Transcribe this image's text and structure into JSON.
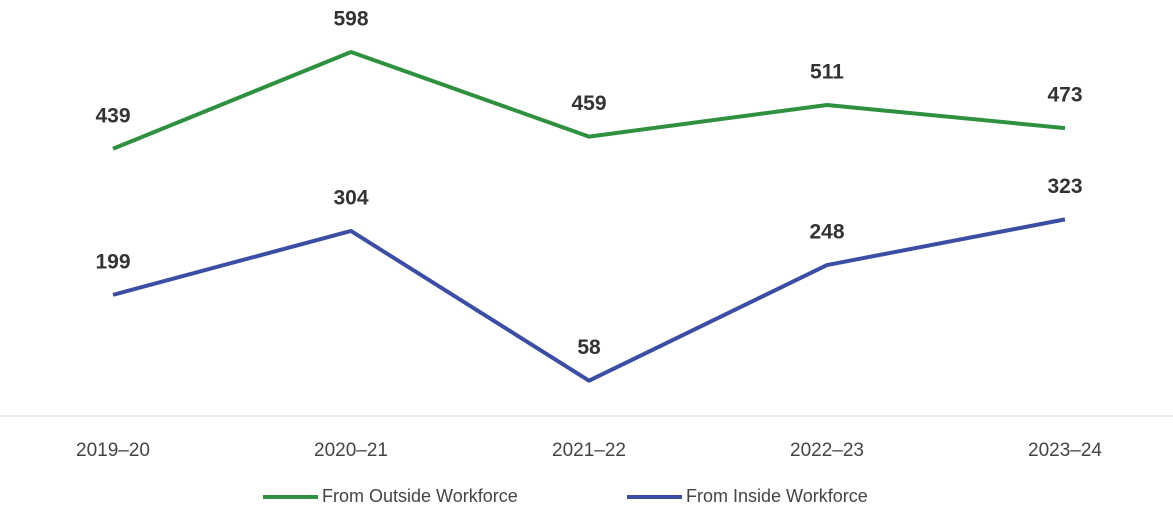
{
  "chart_data": {
    "type": "line",
    "categories": [
      "2019–20",
      "2020–21",
      "2021–22",
      "2022–23",
      "2023–24"
    ],
    "series": [
      {
        "name": "From Outside Workforce",
        "color": "#2f9140",
        "values": [
          439,
          598,
          459,
          511,
          473
        ]
      },
      {
        "name": "From Inside Workforce",
        "color": "#3c4ea3",
        "values": [
          199,
          304,
          58,
          248,
          323
        ]
      }
    ]
  }
}
